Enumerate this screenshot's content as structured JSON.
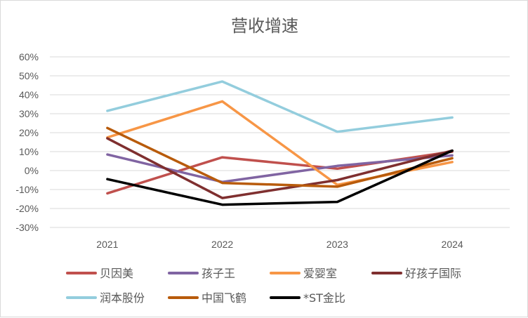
{
  "chart_data": {
    "type": "line",
    "title": "营收增速",
    "xlabel": "",
    "ylabel": "",
    "categories": [
      "2021",
      "2022",
      "2023",
      "2024"
    ],
    "ylim": [
      -30,
      60
    ],
    "yticks": [
      -30,
      -20,
      -10,
      0,
      10,
      20,
      30,
      40,
      50,
      60
    ],
    "ytick_labels": [
      "-30%",
      "-20%",
      "-10%",
      "0%",
      "10%",
      "20%",
      "30%",
      "40%",
      "50%",
      "60%"
    ],
    "grid": true,
    "legend_position": "bottom",
    "series": [
      {
        "name": "贝因美",
        "color": "#c0504d",
        "values": [
          -12,
          7,
          1,
          10
        ]
      },
      {
        "name": "孩子王",
        "color": "#8064a2",
        "values": [
          8.5,
          -6,
          2.5,
          8
        ]
      },
      {
        "name": "爱婴室",
        "color": "#f79646",
        "values": [
          17.5,
          36.5,
          -7.5,
          4.5
        ]
      },
      {
        "name": "好孩子国际",
        "color": "#7f2f2f",
        "values": [
          17,
          -14.5,
          -5,
          10.5
        ]
      },
      {
        "name": "润本股份",
        "color": "#93cddd",
        "values": [
          31.5,
          47,
          20.5,
          28
        ]
      },
      {
        "name": "中国飞鹤",
        "color": "#b85b0b",
        "values": [
          22.5,
          -6.5,
          -8.5,
          6.5
        ]
      },
      {
        "name": "*ST金比",
        "color": "#000000",
        "values": [
          -4.5,
          -18,
          -16.5,
          10.5
        ]
      }
    ]
  }
}
